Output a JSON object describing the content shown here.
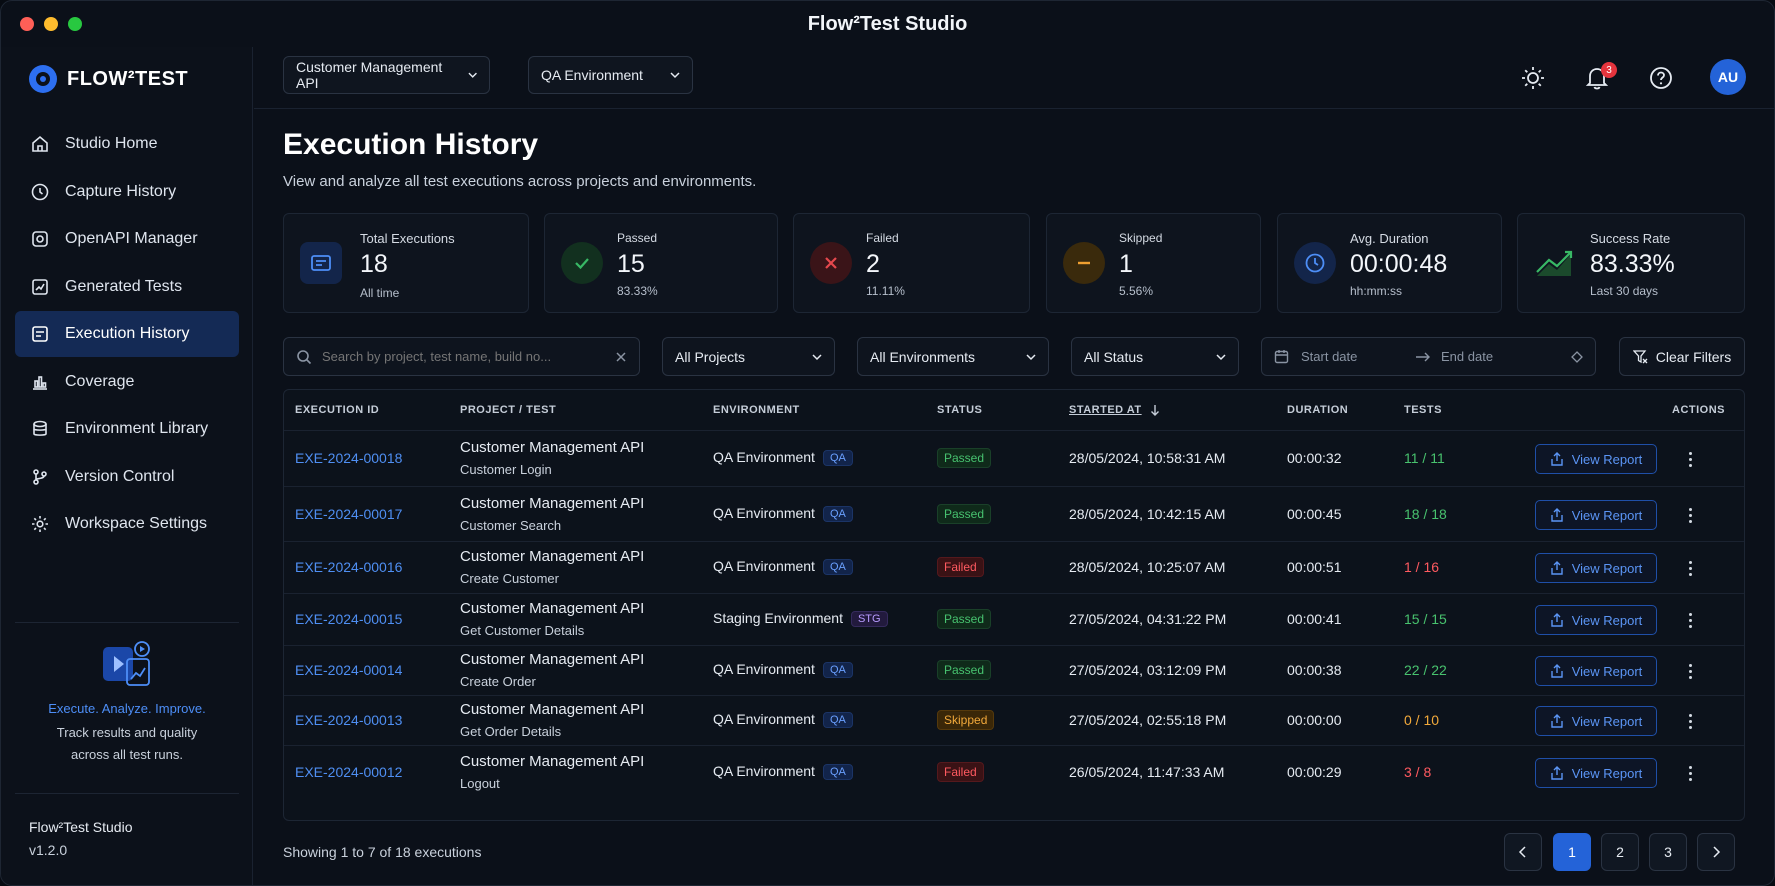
{
  "window": {
    "title": "Flow²Test Studio"
  },
  "sidebar": {
    "logo_text": "FLOW²TEST",
    "items": [
      {
        "label": "Studio Home",
        "icon": "home-icon"
      },
      {
        "label": "Capture History",
        "icon": "capture-icon"
      },
      {
        "label": "OpenAPI Manager",
        "icon": "openapi-icon"
      },
      {
        "label": "Generated Tests",
        "icon": "tests-icon"
      },
      {
        "label": "Execution History",
        "icon": "execution-icon",
        "active": true
      },
      {
        "label": "Coverage",
        "icon": "coverage-icon"
      },
      {
        "label": "Environment Library",
        "icon": "database-icon"
      },
      {
        "label": "Version Control",
        "icon": "branch-icon"
      },
      {
        "label": "Workspace Settings",
        "icon": "gear-icon"
      }
    ],
    "promo": {
      "title": "Execute. Analyze. Improve.",
      "line1": "Track results and quality",
      "line2": "across all test runs."
    },
    "app_name": "Flow²Test Studio",
    "version": "v1.2.0"
  },
  "header": {
    "project": "Customer Management API",
    "environment": "QA Environment",
    "notifications_count": "3",
    "avatar_initials": "AU"
  },
  "page": {
    "title": "Execution History",
    "subtitle": "View and analyze all test executions across projects and environments."
  },
  "stats": [
    {
      "label": "Total Executions",
      "value": "18",
      "sub": "All time",
      "color": "#2f6ee8"
    },
    {
      "label": "Passed",
      "value": "15",
      "sub": "83.33%",
      "color": "#38b865"
    },
    {
      "label": "Failed",
      "value": "2",
      "sub": "11.11%",
      "color": "#e5484d"
    },
    {
      "label": "Skipped",
      "value": "1",
      "sub": "5.56%",
      "color": "#f0a030"
    },
    {
      "label": "Avg. Duration",
      "value": "00:00:48",
      "sub": "hh:mm:ss",
      "color": "#2f6ee8"
    },
    {
      "label": "Success Rate",
      "value": "83.33%",
      "sub": "Last 30 days",
      "color": "#38b865"
    }
  ],
  "filters": {
    "search_placeholder": "Search by project, test name, build no...",
    "project": "All Projects",
    "environment": "All Environments",
    "status": "All Status",
    "start_date": "Start date",
    "end_date": "End date",
    "clear": "Clear Filters"
  },
  "table": {
    "headers": {
      "id": "EXECUTION ID",
      "project": "PROJECT / TEST",
      "environment": "ENVIRONMENT",
      "status": "STATUS",
      "started": "STARTED AT",
      "duration": "DURATION",
      "tests": "TESTS",
      "actions": "ACTIONS"
    },
    "view_label": "View Report",
    "rows": [
      {
        "id": "EXE-2024-00018",
        "project": "Customer Management API",
        "test": "Customer Login",
        "env": "QA Environment",
        "env_tag": "QA",
        "status": "Passed",
        "started": "28/05/2024, 10:58:31 AM",
        "duration": "00:00:32",
        "tests": "11 / 11"
      },
      {
        "id": "EXE-2024-00017",
        "project": "Customer Management API",
        "test": "Customer Search",
        "env": "QA Environment",
        "env_tag": "QA",
        "status": "Passed",
        "started": "28/05/2024, 10:42:15 AM",
        "duration": "00:00:45",
        "tests": "18 / 18"
      },
      {
        "id": "EXE-2024-00016",
        "project": "Customer Management API",
        "test": "Create Customer",
        "env": "QA Environment",
        "env_tag": "QA",
        "status": "Failed",
        "started": "28/05/2024, 10:25:07 AM",
        "duration": "00:00:51",
        "tests": "1 / 16"
      },
      {
        "id": "EXE-2024-00015",
        "project": "Customer Management API",
        "test": "Get Customer Details",
        "env": "Staging Environment",
        "env_tag": "STG",
        "status": "Passed",
        "started": "27/05/2024, 04:31:22 PM",
        "duration": "00:00:41",
        "tests": "15 / 15"
      },
      {
        "id": "EXE-2024-00014",
        "project": "Customer Management API",
        "test": "Create Order",
        "env": "QA Environment",
        "env_tag": "QA",
        "status": "Passed",
        "started": "27/05/2024, 03:12:09 PM",
        "duration": "00:00:38",
        "tests": "22 / 22"
      },
      {
        "id": "EXE-2024-00013",
        "project": "Customer Management API",
        "test": "Get Order Details",
        "env": "QA Environment",
        "env_tag": "QA",
        "status": "Skipped",
        "started": "27/05/2024, 02:55:18 PM",
        "duration": "00:00:00",
        "tests": "0 / 10"
      },
      {
        "id": "EXE-2024-00012",
        "project": "Customer Management API",
        "test": "Logout",
        "env": "QA Environment",
        "env_tag": "QA",
        "status": "Failed",
        "started": "26/05/2024, 11:47:33 AM",
        "duration": "00:00:29",
        "tests": "3 / 8"
      }
    ]
  },
  "pagination": {
    "summary": "Showing 1 to 7 of 18 executions",
    "pages": [
      "1",
      "2",
      "3"
    ],
    "current": "1"
  }
}
